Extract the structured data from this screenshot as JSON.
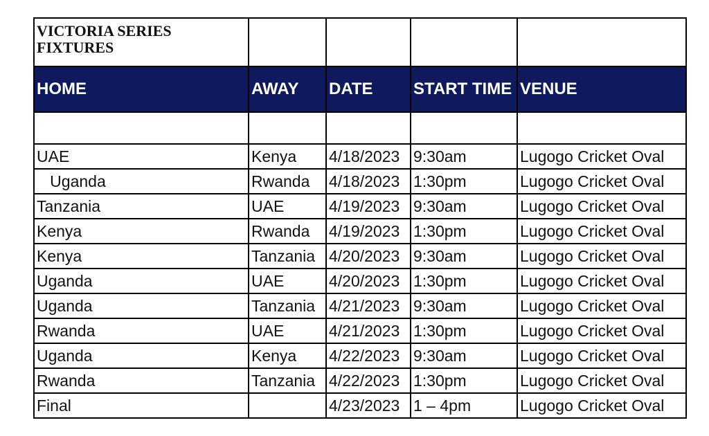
{
  "title": "VICTORIA SERIES FIXTURES",
  "header_color": "#0f1a5e",
  "columns": [
    "HOME",
    "AWAY",
    "DATE",
    "START TIME",
    "VENUE"
  ],
  "rows": [
    [
      "UAE",
      "Kenya",
      "4/18/2023",
      "9:30am",
      "Lugogo Cricket Oval"
    ],
    [
      "   Uganda",
      "Rwanda",
      "4/18/2023",
      "1:30pm",
      "Lugogo Cricket Oval"
    ],
    [
      "Tanzania",
      "UAE",
      "4/19/2023",
      "9:30am",
      "Lugogo Cricket Oval"
    ],
    [
      "Kenya",
      "Rwanda",
      "4/19/2023",
      "1:30pm",
      "Lugogo Cricket Oval"
    ],
    [
      "Kenya",
      "Tanzania",
      "4/20/2023",
      "9:30am",
      "Lugogo Cricket Oval"
    ],
    [
      "Uganda",
      "UAE",
      "4/20/2023",
      "1:30pm",
      "Lugogo Cricket Oval"
    ],
    [
      "Uganda",
      "Tanzania",
      "4/21/2023",
      "9:30am",
      "Lugogo Cricket Oval"
    ],
    [
      "Rwanda",
      "UAE",
      "4/21/2023",
      "1:30pm",
      "Lugogo Cricket Oval"
    ],
    [
      "Uganda",
      "Kenya",
      "4/22/2023",
      "9:30am",
      "Lugogo Cricket Oval"
    ],
    [
      "Rwanda",
      "Tanzania",
      "4/22/2023",
      "1:30pm",
      "Lugogo Cricket Oval"
    ],
    [
      "Final",
      "",
      "4/23/2023",
      "1 – 4pm",
      "Lugogo Cricket Oval"
    ]
  ]
}
